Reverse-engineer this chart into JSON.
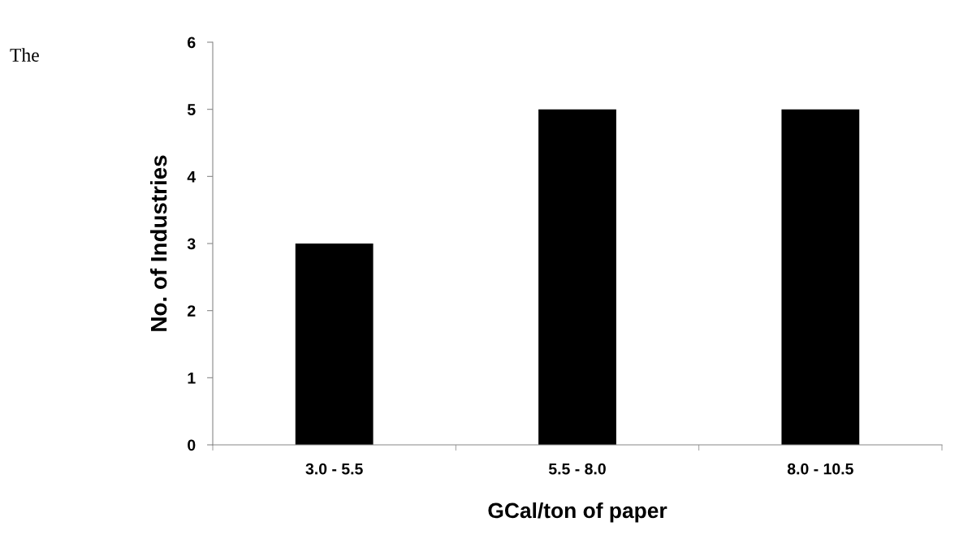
{
  "chart_data": {
    "type": "bar",
    "xlabel": "GCal/ton of paper",
    "ylabel": "No. of Industries",
    "categories": [
      "3.0 - 5.5",
      "5.5 - 8.0",
      "8.0 - 10.5"
    ],
    "values": [
      3,
      5,
      5
    ],
    "color": "#000000",
    "ylim": [
      0,
      6
    ],
    "yticks": [
      0,
      1,
      2,
      3,
      4,
      5,
      6
    ],
    "grid": false,
    "annotations": [
      "The"
    ]
  }
}
